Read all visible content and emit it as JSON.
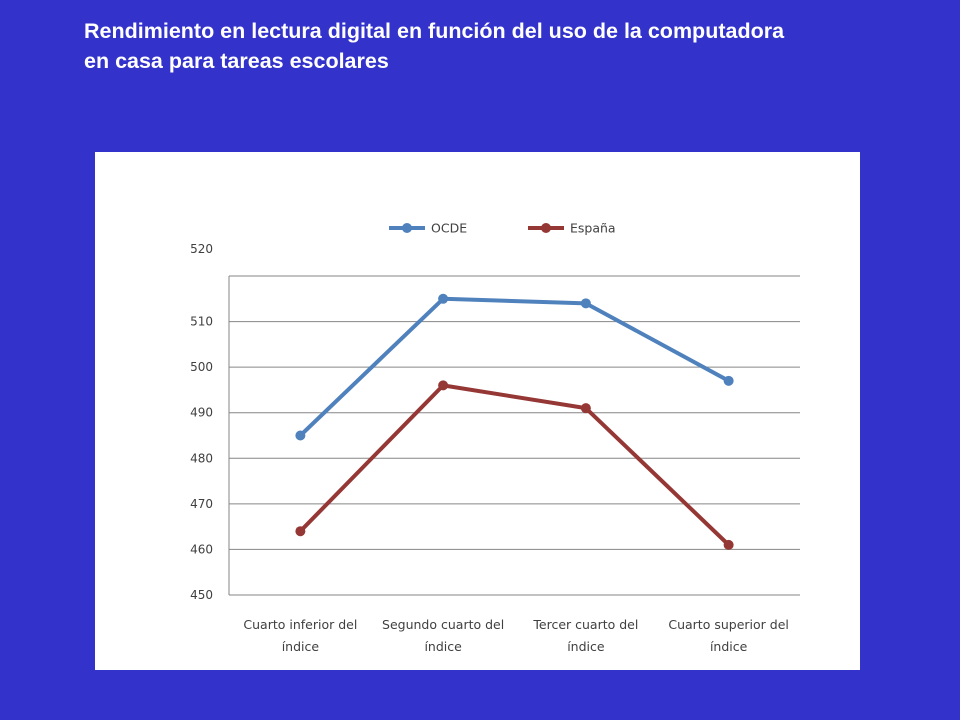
{
  "slide": {
    "title_line1": "Rendimiento en lectura digital en función del uso de la computadora",
    "title_line2": "en casa para tareas escolares"
  },
  "colors": {
    "background": "#3333cc",
    "ocde": "#4f81bd",
    "espana": "#953735",
    "grid": "#868686"
  },
  "chart_data": {
    "type": "line",
    "title": "",
    "xlabel": "",
    "ylabel": "",
    "categories": [
      [
        "Cuarto inferior del",
        "índice"
      ],
      [
        "Segundo cuarto del",
        "índice"
      ],
      [
        "Tercer cuarto del",
        "índice"
      ],
      [
        "Cuarto superior del",
        "índice"
      ]
    ],
    "ylim": [
      450,
      520
    ],
    "yticks": [
      450,
      460,
      470,
      480,
      490,
      500,
      510,
      520
    ],
    "legend_position": "top",
    "series": [
      {
        "name": "OCDE",
        "color": "#4f81bd",
        "values": [
          485,
          515,
          514,
          497
        ]
      },
      {
        "name": "España",
        "color": "#953735",
        "values": [
          464,
          496,
          491,
          461
        ]
      }
    ]
  }
}
